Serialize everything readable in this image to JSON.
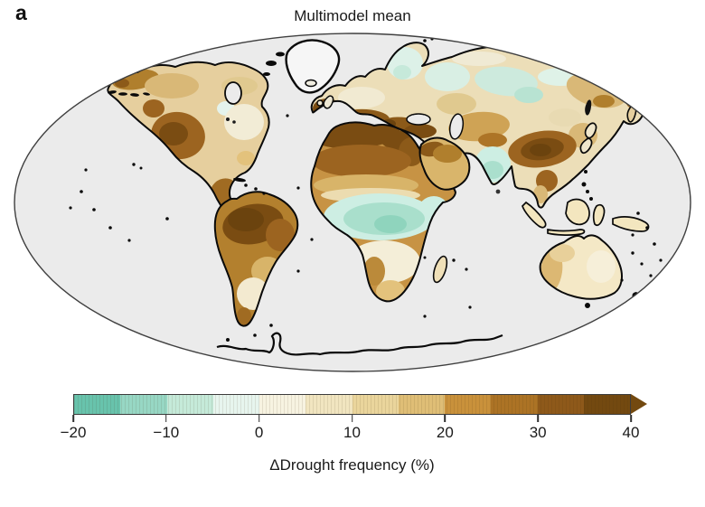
{
  "panel_label": "a",
  "title": "Multimodel mean",
  "colorbar": {
    "label": "ΔDrought frequency (%)",
    "tick_labels": [
      "−20",
      "−10",
      "0",
      "10",
      "20",
      "30",
      "40"
    ],
    "min": -20,
    "max": 40,
    "segment_step": 5,
    "segments": [
      {
        "from": -20,
        "to": -15,
        "color": "#68c3ac"
      },
      {
        "from": -15,
        "to": -10,
        "color": "#97d7c4"
      },
      {
        "from": -10,
        "to": -5,
        "color": "#c5ead9"
      },
      {
        "from": -5,
        "to": 0,
        "color": "#e7f5ee"
      },
      {
        "from": 0,
        "to": 5,
        "color": "#f7f3e1"
      },
      {
        "from": 5,
        "to": 10,
        "color": "#f1e5c0"
      },
      {
        "from": 10,
        "to": 15,
        "color": "#ead59c"
      },
      {
        "from": 15,
        "to": 20,
        "color": "#dfbe76"
      },
      {
        "from": 20,
        "to": 25,
        "color": "#c9913b"
      },
      {
        "from": 25,
        "to": 30,
        "color": "#ac7325"
      },
      {
        "from": 30,
        "to": 35,
        "color": "#8e591a"
      },
      {
        "from": 35,
        "to": 40,
        "color": "#734910"
      }
    ],
    "arrow_color": "#734910"
  },
  "map": {
    "projection": "Mollweide world map",
    "ocean_color": "#ebebeb",
    "coastline_color": "#0a0a0a",
    "no_data_color": "#f6f6f6",
    "outline_color": "#3f3f3f"
  },
  "chart_data": {
    "type": "heatmap",
    "title": "Multimodel mean",
    "colorbar_label": "ΔDrought frequency (%)",
    "colorbar_ticks": [
      -20,
      -10,
      0,
      10,
      20,
      30,
      40
    ],
    "value_range_pct": [
      -20,
      40
    ],
    "regions": [
      {
        "region": "Amazon / northern South America",
        "delta_drought_frequency_pct": 38
      },
      {
        "region": "Mediterranean / southern Europe",
        "delta_drought_frequency_pct": 32
      },
      {
        "region": "North Africa (Sahara rim)",
        "delta_drought_frequency_pct": 25
      },
      {
        "region": "Central Africa (Sahel–Congo)",
        "delta_drought_frequency_pct": -8
      },
      {
        "region": "Western North America",
        "delta_drought_frequency_pct": 25
      },
      {
        "region": "Eastern North America",
        "delta_drought_frequency_pct": 5
      },
      {
        "region": "Alaska / northwest Canada",
        "delta_drought_frequency_pct": 18
      },
      {
        "region": "Northern Eurasia (Siberia)",
        "delta_drought_frequency_pct": -5
      },
      {
        "region": "Central Asia / Tibet / south China",
        "delta_drought_frequency_pct": 28
      },
      {
        "region": "India",
        "delta_drought_frequency_pct": -5
      },
      {
        "region": "Southeast Asia / Indonesia",
        "delta_drought_frequency_pct": 8
      },
      {
        "region": "Australia",
        "delta_drought_frequency_pct": 8
      },
      {
        "region": "Southern Africa",
        "delta_drought_frequency_pct": 12
      },
      {
        "region": "Southern South America",
        "delta_drought_frequency_pct": 5
      },
      {
        "region": "Greenland / Antarctica interior",
        "delta_drought_frequency_pct": null
      }
    ]
  }
}
